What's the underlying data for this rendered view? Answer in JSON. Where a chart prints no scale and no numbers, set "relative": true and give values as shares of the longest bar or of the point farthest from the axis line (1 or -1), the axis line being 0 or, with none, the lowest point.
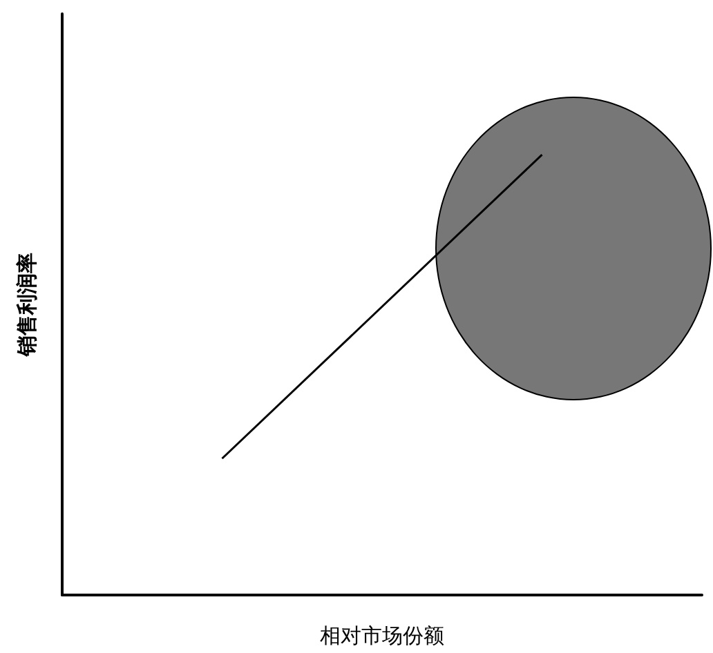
{
  "chart_data": {
    "type": "line",
    "relative": true,
    "xlabel": "相对市场份额",
    "ylabel": "销售利润率",
    "categories": [
      null,
      null
    ],
    "marker": "none",
    "grid": false,
    "series": [
      {
        "color": "#000000",
        "values": [
          0.31,
          1
        ]
      }
    ]
  }
}
